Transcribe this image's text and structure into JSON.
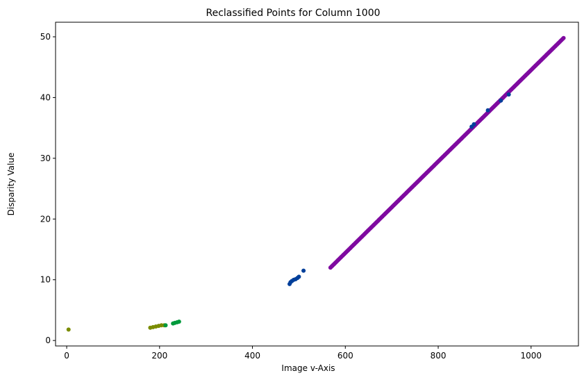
{
  "chart_data": {
    "type": "scatter",
    "title": "Reclassified Points for Column 1000",
    "xlabel": "Image v-Axis",
    "ylabel": "Disparity Value",
    "xlim": [
      -24,
      1102
    ],
    "ylim": [
      -0.9,
      52.4
    ],
    "xticks": [
      0,
      200,
      400,
      600,
      800,
      1000
    ],
    "yticks": [
      0,
      10,
      20,
      30,
      40,
      50
    ],
    "grid": false,
    "series": [
      {
        "color": "#7a8c00",
        "points": [
          [
            4,
            1.8
          ],
          [
            180,
            2.1
          ],
          [
            186,
            2.2
          ],
          [
            192,
            2.3
          ],
          [
            198,
            2.4
          ],
          [
            204,
            2.5
          ],
          [
            210,
            2.5
          ]
        ]
      },
      {
        "color": "#009a3c",
        "points": [
          [
            213,
            2.5
          ],
          [
            229,
            2.8
          ],
          [
            233,
            2.9
          ],
          [
            238,
            3.0
          ],
          [
            242,
            3.1
          ]
        ]
      },
      {
        "color": "#003f9a",
        "points": [
          [
            480,
            9.3
          ],
          [
            482,
            9.6
          ],
          [
            485,
            9.8
          ],
          [
            489,
            10.0
          ],
          [
            493,
            10.1
          ],
          [
            497,
            10.3
          ],
          [
            500,
            10.5
          ],
          [
            510,
            11.5
          ],
          [
            872,
            35.2
          ],
          [
            877,
            35.6
          ],
          [
            907,
            37.9
          ],
          [
            935,
            39.5
          ],
          [
            952,
            40.5
          ]
        ]
      },
      {
        "color": "#7f0aa0",
        "segment": [
          [
            568,
            12.0
          ],
          [
            1070,
            49.8
          ]
        ],
        "step": 2
      }
    ]
  }
}
